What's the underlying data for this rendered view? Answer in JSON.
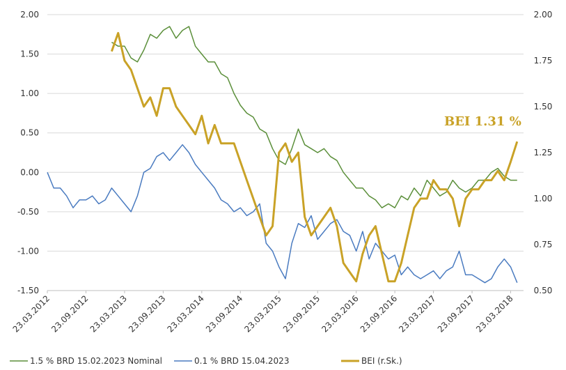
{
  "chart_data": {
    "type": "line",
    "annotation": "BEI 1.31 %",
    "x": [
      "23.03.2012",
      "23.04.2012",
      "23.05.2012",
      "23.06.2012",
      "23.07.2012",
      "23.08.2012",
      "23.09.2012",
      "23.10.2012",
      "23.11.2012",
      "23.12.2012",
      "23.01.2013",
      "23.02.2013",
      "23.03.2013",
      "23.04.2013",
      "23.05.2013",
      "23.06.2013",
      "23.07.2013",
      "23.08.2013",
      "23.09.2013",
      "23.10.2013",
      "23.11.2013",
      "23.12.2013",
      "23.01.2014",
      "23.02.2014",
      "23.03.2014",
      "23.04.2014",
      "23.05.2014",
      "23.06.2014",
      "23.07.2014",
      "23.08.2014",
      "23.09.2014",
      "23.10.2014",
      "23.11.2014",
      "23.12.2014",
      "23.01.2015",
      "23.02.2015",
      "23.03.2015",
      "23.04.2015",
      "23.05.2015",
      "23.06.2015",
      "23.07.2015",
      "23.08.2015",
      "23.09.2015",
      "23.10.2015",
      "23.11.2015",
      "23.12.2015",
      "23.01.2016",
      "23.02.2016",
      "23.03.2016",
      "23.04.2016",
      "23.05.2016",
      "23.06.2016",
      "23.07.2016",
      "23.08.2016",
      "23.09.2016",
      "23.10.2016",
      "23.11.2016",
      "23.12.2016",
      "23.01.2017",
      "23.02.2017",
      "23.03.2017",
      "23.04.2017",
      "23.05.2017",
      "23.06.2017",
      "23.07.2017",
      "23.08.2017",
      "23.09.2017",
      "23.10.2017",
      "23.11.2017",
      "23.12.2017",
      "23.01.2018",
      "23.02.2018",
      "23.03.2018",
      "23.04.2018"
    ],
    "xlim": [
      "23.03.2012",
      "23.05.2018"
    ],
    "xticks": [
      "23.03.2012",
      "23.09.2012",
      "23.03.2013",
      "23.09.2013",
      "23.03.2014",
      "23.09.2014",
      "23.03.2015",
      "23.09.2015",
      "23.03.2016",
      "23.09.2016",
      "23.03.2017",
      "23.09.2017",
      "23.03.2018"
    ],
    "ylim": [
      -1.5,
      2.0
    ],
    "yticks": [
      {
        "value": -1.5,
        "label": "-1.50"
      },
      {
        "value": -1.0,
        "label": "-1.00"
      },
      {
        "value": -0.5,
        "label": "-0.50"
      },
      {
        "value": 0,
        "label": "0.00"
      },
      {
        "value": 0.5,
        "label": "0.50"
      },
      {
        "value": 1.0,
        "label": "1.00"
      },
      {
        "value": 1.5,
        "label": "1.50"
      },
      {
        "value": 2.0,
        "label": "2.00"
      }
    ],
    "y2lim": [
      0.5,
      2.0
    ],
    "y2ticks": [
      {
        "value": 0.5,
        "label": "0.50"
      },
      {
        "value": 0.75,
        "label": "0.75"
      },
      {
        "value": 1.0,
        "label": "1.00"
      },
      {
        "value": 1.25,
        "label": "1.25"
      },
      {
        "value": 1.5,
        "label": "1.50"
      },
      {
        "value": 1.75,
        "label": "1.75"
      },
      {
        "value": 2.0,
        "label": "2.00"
      }
    ],
    "grid": true,
    "legend": "bottom",
    "series": [
      {
        "name": "1.5 % BRD 15.02.2023 Nominal",
        "color": "#5b8f3a",
        "width": 1.5,
        "values": [
          null,
          null,
          null,
          null,
          null,
          null,
          null,
          null,
          null,
          null,
          1.65,
          1.6,
          1.6,
          1.45,
          1.4,
          1.55,
          1.75,
          1.7,
          1.8,
          1.85,
          1.7,
          1.8,
          1.85,
          1.6,
          1.5,
          1.4,
          1.4,
          1.25,
          1.2,
          1.0,
          0.85,
          0.75,
          0.7,
          0.55,
          0.5,
          0.3,
          0.15,
          0.1,
          0.3,
          0.55,
          0.35,
          0.3,
          0.25,
          0.3,
          0.2,
          0.15,
          0.0,
          -0.1,
          -0.2,
          -0.2,
          -0.3,
          -0.35,
          -0.45,
          -0.4,
          -0.45,
          -0.3,
          -0.35,
          -0.2,
          -0.3,
          -0.1,
          -0.2,
          -0.3,
          -0.25,
          -0.1,
          -0.2,
          -0.25,
          -0.2,
          -0.1,
          -0.1,
          0.0,
          0.05,
          -0.05,
          -0.1,
          -0.1
        ]
      },
      {
        "name": "0.1 % BRD 15.04.2023",
        "color": "#4a7bc0",
        "width": 1.5,
        "values": [
          0.0,
          -0.2,
          -0.2,
          -0.3,
          -0.45,
          -0.35,
          -0.35,
          -0.3,
          -0.4,
          -0.35,
          -0.2,
          -0.3,
          -0.4,
          -0.5,
          -0.3,
          0.0,
          0.05,
          0.2,
          0.25,
          0.15,
          0.25,
          0.35,
          0.25,
          0.1,
          0.0,
          -0.1,
          -0.2,
          -0.35,
          -0.4,
          -0.5,
          -0.45,
          -0.55,
          -0.5,
          -0.4,
          -0.9,
          -1.0,
          -1.2,
          -1.35,
          -0.9,
          -0.65,
          -0.7,
          -0.55,
          -0.85,
          -0.75,
          -0.65,
          -0.6,
          -0.75,
          -0.8,
          -1.0,
          -0.75,
          -1.1,
          -0.9,
          -1.0,
          -1.1,
          -1.05,
          -1.3,
          -1.2,
          -1.3,
          -1.35,
          -1.3,
          -1.25,
          -1.35,
          -1.25,
          -1.2,
          -1.0,
          -1.3,
          -1.3,
          -1.35,
          -1.4,
          -1.35,
          -1.2,
          -1.1,
          -1.2,
          -1.4
        ]
      },
      {
        "name": "BEI (r.Sk.)",
        "color": "#c9a227",
        "width": 3,
        "axis": "y2",
        "values": [
          null,
          null,
          null,
          null,
          null,
          null,
          null,
          null,
          null,
          null,
          1.8,
          1.9,
          1.75,
          1.7,
          1.6,
          1.5,
          1.55,
          1.45,
          1.6,
          1.6,
          1.5,
          1.45,
          1.4,
          1.35,
          1.45,
          1.3,
          1.4,
          1.3,
          1.3,
          1.3,
          1.2,
          1.1,
          1.0,
          0.9,
          0.8,
          0.85,
          1.25,
          1.3,
          1.2,
          1.25,
          0.9,
          0.8,
          0.85,
          0.9,
          0.95,
          0.85,
          0.65,
          0.6,
          0.55,
          0.7,
          0.8,
          0.85,
          0.7,
          0.55,
          0.55,
          0.65,
          0.8,
          0.95,
          1.0,
          1.0,
          1.1,
          1.05,
          1.05,
          1.0,
          0.85,
          1.0,
          1.05,
          1.05,
          1.1,
          1.1,
          1.15,
          1.1,
          1.2,
          1.31
        ]
      }
    ]
  }
}
